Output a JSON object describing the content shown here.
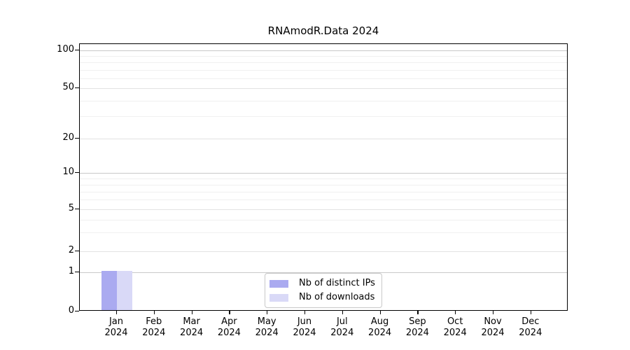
{
  "chart_data": {
    "type": "bar",
    "title": "RNAmodR.Data 2024",
    "categories": [
      "Jan",
      "Feb",
      "Mar",
      "Apr",
      "May",
      "Jun",
      "Jul",
      "Aug",
      "Sep",
      "Oct",
      "Nov",
      "Dec"
    ],
    "category_year": "2024",
    "series": [
      {
        "name": "Nb of distinct IPs",
        "color": "#aaaaf0",
        "values": [
          1,
          0,
          0,
          0,
          0,
          0,
          0,
          0,
          0,
          0,
          0,
          0
        ]
      },
      {
        "name": "Nb of downloads",
        "color": "#d9d9f7",
        "values": [
          1,
          0,
          0,
          0,
          0,
          0,
          0,
          0,
          0,
          0,
          0,
          0
        ]
      }
    ],
    "y_ticks": [
      0,
      1,
      2,
      5,
      10,
      20,
      50,
      100
    ],
    "y_minor_ticks": [
      3,
      4,
      6,
      7,
      8,
      9,
      30,
      40,
      60,
      70,
      80,
      90
    ],
    "ylim": [
      0,
      100
    ],
    "yscale": "log-like (majors 0,1,2,5,10,20,50,100)",
    "grid": true,
    "legend_position": "bottom-center-inside",
    "colors": {
      "grid_decade": "#c8c8c8",
      "grid_major": "#e2e2e2",
      "grid_minor": "#f0f0f0",
      "axis": "#000000",
      "legend_border": "#c9c9c9"
    }
  }
}
